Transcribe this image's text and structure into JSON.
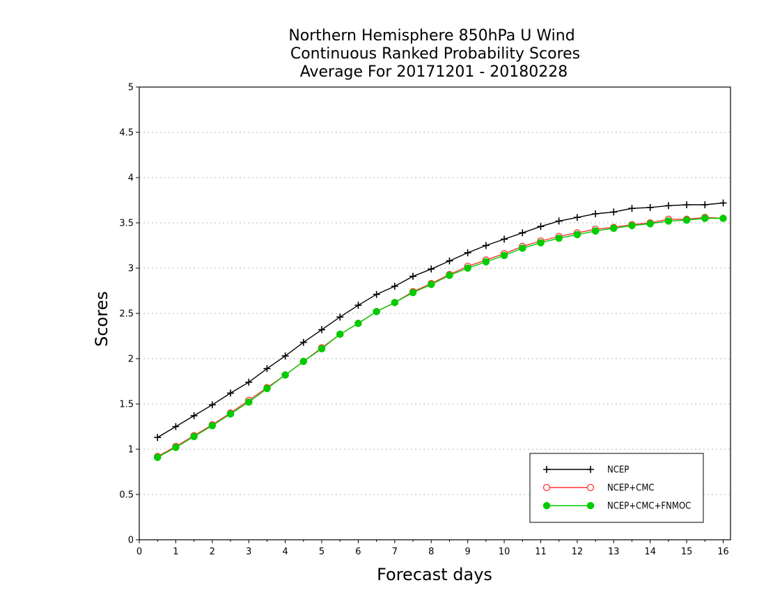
{
  "chart_data": {
    "type": "line",
    "title": [
      "Northern Hemisphere 850hPa U Wind",
      "Continuous Ranked Probability Scores",
      "Average For 20171201 - 20180228"
    ],
    "xlabel": "Forecast days",
    "ylabel": "Scores",
    "xlim": [
      0,
      16.2
    ],
    "ylim": [
      0,
      5
    ],
    "x_ticks": [
      0,
      1,
      2,
      3,
      4,
      5,
      6,
      7,
      8,
      9,
      10,
      11,
      12,
      13,
      14,
      15,
      16
    ],
    "y_ticks": [
      0,
      0.5,
      1,
      1.5,
      2,
      2.5,
      3,
      3.5,
      4,
      4.5,
      5
    ],
    "x_tick_labels": [
      "0",
      "1",
      "2",
      "3",
      "4",
      "5",
      "6",
      "7",
      "8",
      "9",
      "10",
      "11",
      "12",
      "13",
      "14",
      "15",
      "16"
    ],
    "y_tick_labels": [
      "0",
      "0.5",
      "1",
      "1.5",
      "2",
      "2.5",
      "3",
      "3.5",
      "4",
      "4.5",
      "5"
    ],
    "grid": true,
    "legend_position": "bottom-right",
    "x": [
      0.5,
      1.0,
      1.5,
      2.0,
      2.5,
      3.0,
      3.5,
      4.0,
      4.5,
      5.0,
      5.5,
      6.0,
      6.5,
      7.0,
      7.5,
      8.0,
      8.5,
      9.0,
      9.5,
      10.0,
      10.5,
      11.0,
      11.5,
      12.0,
      12.5,
      13.0,
      13.5,
      14.0,
      14.5,
      15.0,
      15.5,
      16.0
    ],
    "series": [
      {
        "name": "NCEP",
        "color": "#000000",
        "marker": "plus",
        "values": [
          1.13,
          1.25,
          1.37,
          1.49,
          1.62,
          1.74,
          1.89,
          2.03,
          2.18,
          2.32,
          2.46,
          2.59,
          2.71,
          2.8,
          2.91,
          2.99,
          3.08,
          3.17,
          3.25,
          3.32,
          3.39,
          3.46,
          3.52,
          3.56,
          3.6,
          3.62,
          3.66,
          3.67,
          3.69,
          3.7,
          3.7,
          3.72
        ]
      },
      {
        "name": "NCEP+CMC",
        "color": "#ff3333",
        "marker": "open-circle",
        "values": [
          0.92,
          1.03,
          1.15,
          1.27,
          1.4,
          1.54,
          1.68,
          1.82,
          1.97,
          2.12,
          2.27,
          2.39,
          2.52,
          2.62,
          2.74,
          2.83,
          2.93,
          3.02,
          3.09,
          3.16,
          3.24,
          3.3,
          3.35,
          3.39,
          3.43,
          3.45,
          3.48,
          3.5,
          3.54,
          3.54,
          3.56,
          3.55
        ]
      },
      {
        "name": "NCEP+CMC+FNMOC",
        "color": "#00cc00",
        "marker": "filled-circle",
        "values": [
          0.91,
          1.02,
          1.14,
          1.26,
          1.39,
          1.52,
          1.67,
          1.82,
          1.97,
          2.11,
          2.27,
          2.39,
          2.52,
          2.62,
          2.73,
          2.82,
          2.92,
          3.0,
          3.07,
          3.14,
          3.22,
          3.28,
          3.33,
          3.37,
          3.41,
          3.44,
          3.47,
          3.49,
          3.52,
          3.53,
          3.55,
          3.55
        ]
      }
    ]
  }
}
